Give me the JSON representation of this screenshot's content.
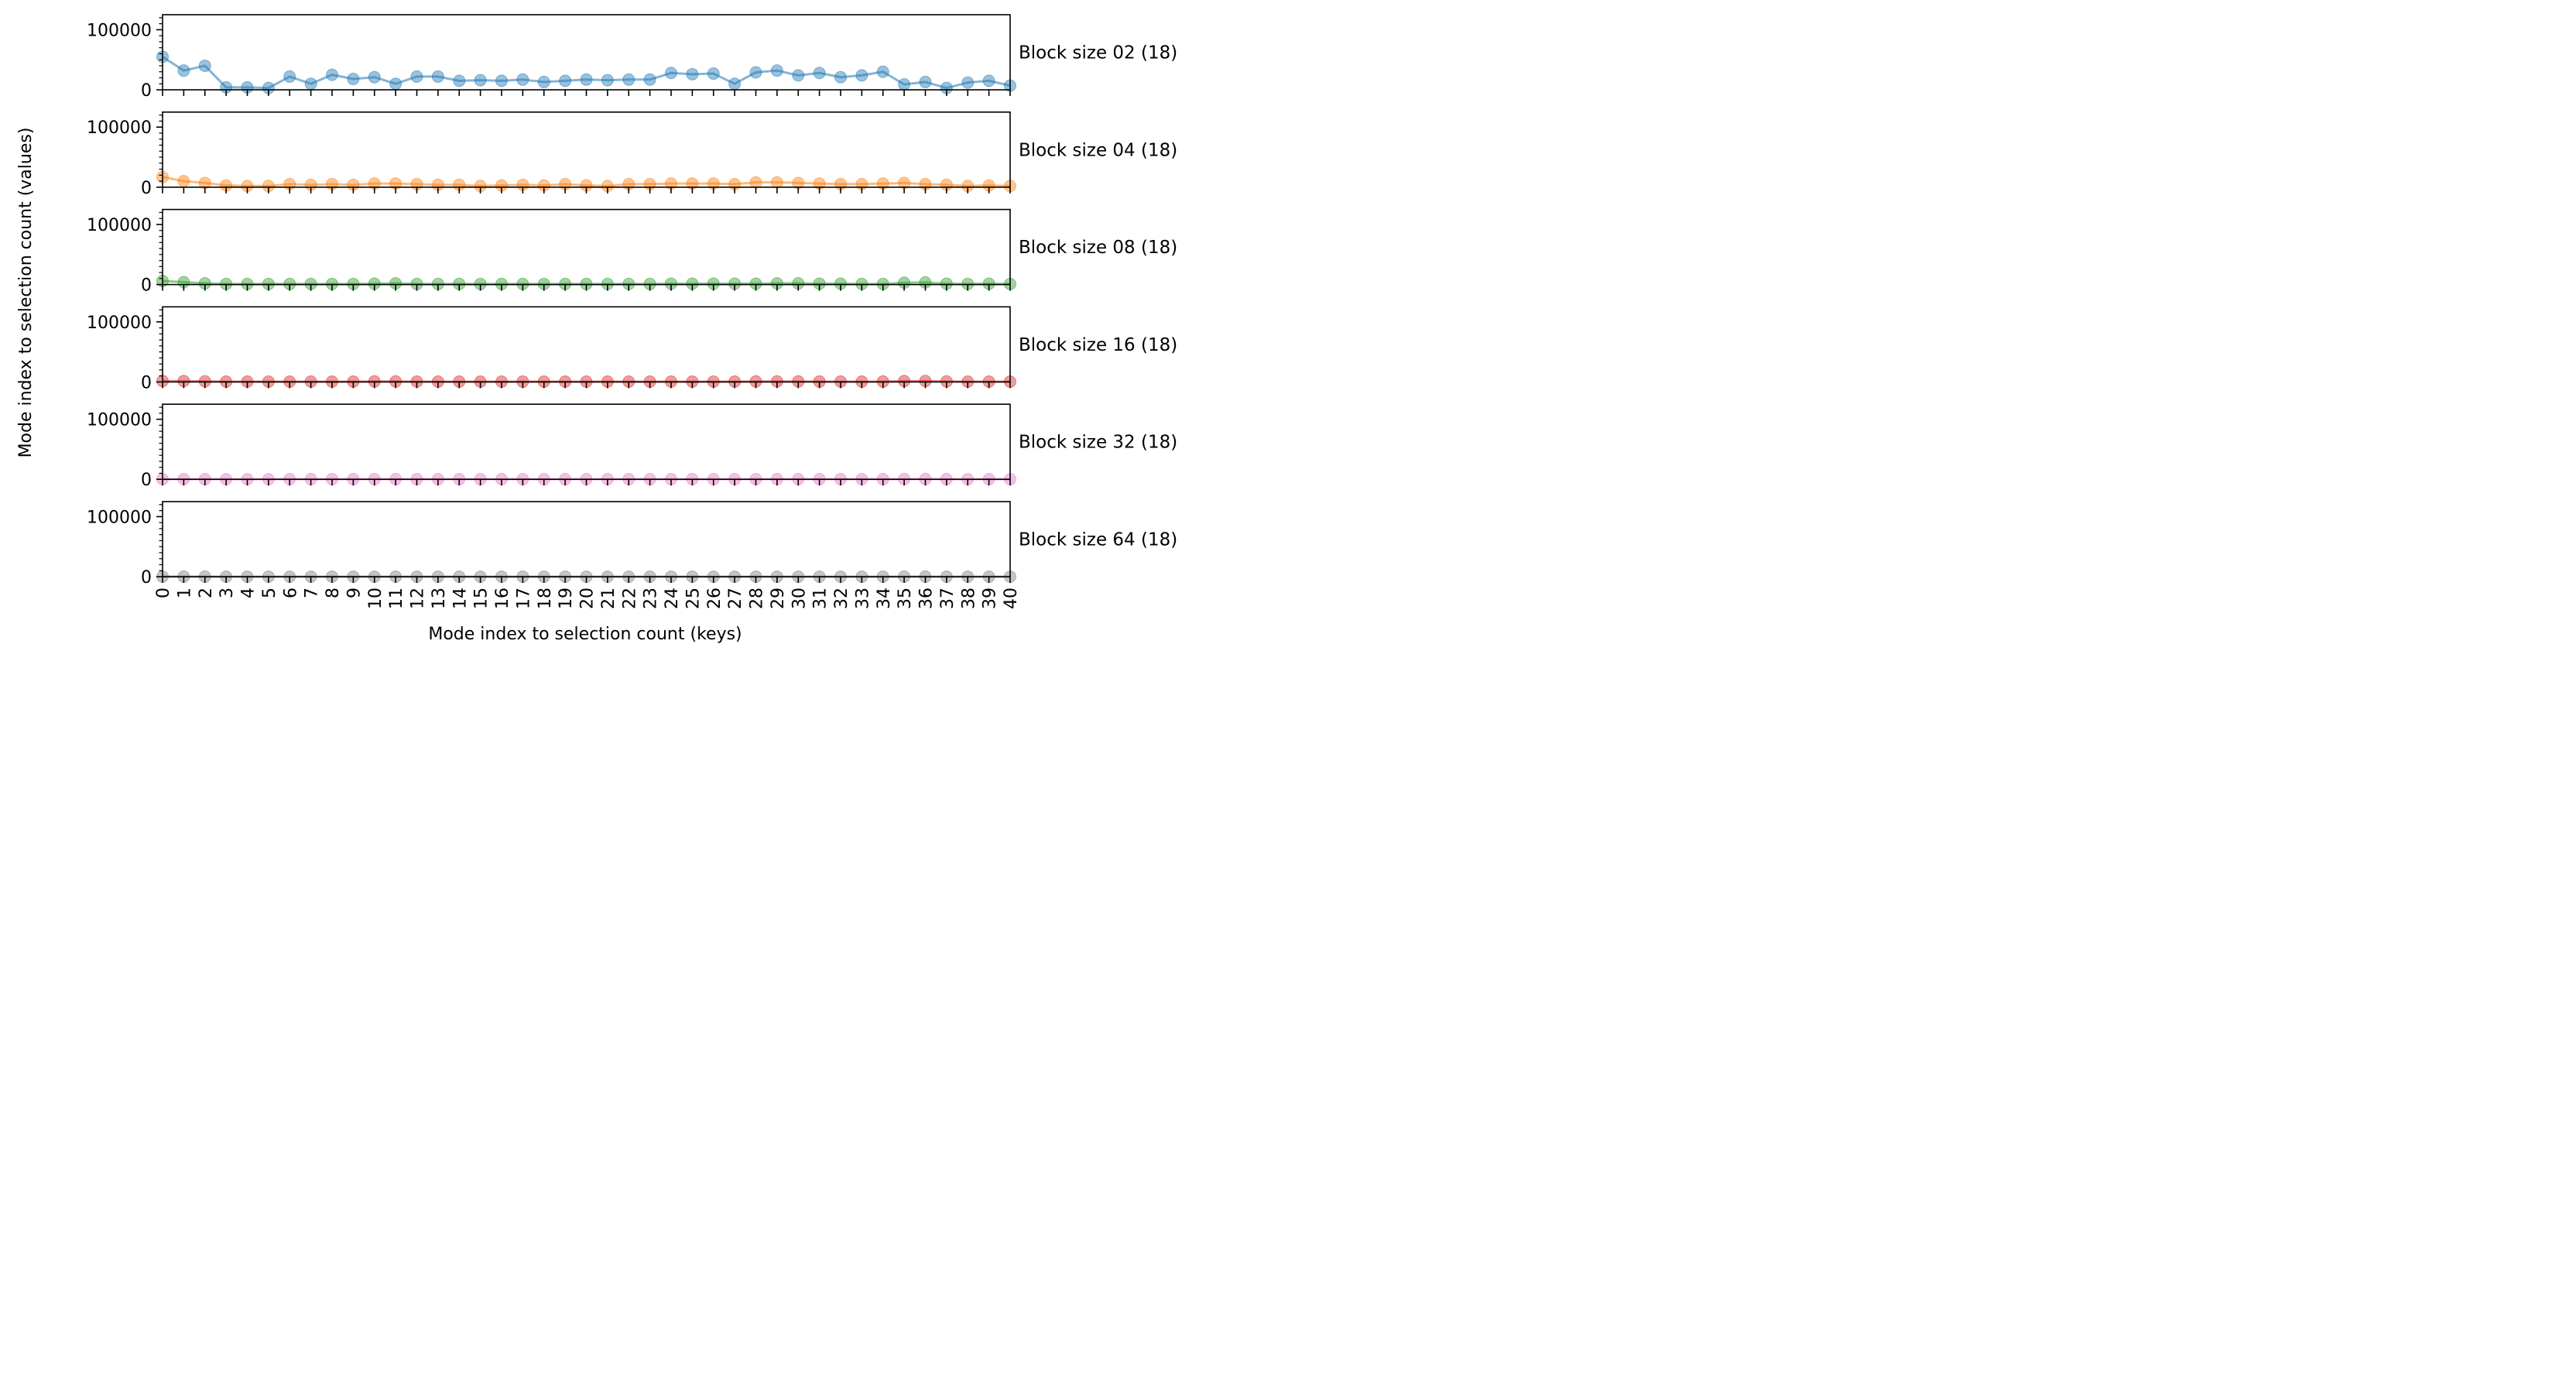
{
  "chart_data": {
    "type": "line",
    "xlabel": "Mode index to selection count (keys)",
    "ylabel": "Mode index to selection count (values)",
    "x": [
      0,
      1,
      2,
      3,
      4,
      5,
      6,
      7,
      8,
      9,
      10,
      11,
      12,
      13,
      14,
      15,
      16,
      17,
      18,
      19,
      20,
      21,
      22,
      23,
      24,
      25,
      26,
      27,
      28,
      29,
      30,
      31,
      32,
      33,
      34,
      35,
      36,
      37,
      38,
      39,
      40
    ],
    "x_tick_labels": [
      "0",
      "1",
      "2",
      "3",
      "4",
      "5",
      "6",
      "7",
      "8",
      "9",
      "10",
      "11",
      "12",
      "13",
      "14",
      "15",
      "16",
      "17",
      "18",
      "19",
      "20",
      "21",
      "22",
      "23",
      "24",
      "25",
      "26",
      "27",
      "28",
      "29",
      "30",
      "31",
      "32",
      "33",
      "34",
      "35",
      "36",
      "37",
      "38",
      "39",
      "40"
    ],
    "xlim": [
      0,
      40
    ],
    "ylim": [
      0,
      125000
    ],
    "y_ticks": [
      0,
      100000
    ],
    "y_tick_labels": [
      "0",
      "100000"
    ],
    "grid": false,
    "panels": [
      {
        "label": "Block size 02 (18)",
        "color": "#1f77b4",
        "values": [
          55000,
          32000,
          40000,
          4000,
          4000,
          3000,
          22000,
          10000,
          25000,
          18000,
          21000,
          10000,
          22000,
          22000,
          15000,
          16000,
          15000,
          17000,
          13000,
          15000,
          17000,
          16000,
          17000,
          17000,
          28000,
          26000,
          27000,
          10000,
          29000,
          32000,
          24000,
          28000,
          21000,
          24000,
          30000,
          9000,
          13000,
          3000,
          12000,
          15000,
          7000
        ]
      },
      {
        "label": "Block size 04 (18)",
        "color": "#ff7f0e",
        "values": [
          17000,
          10000,
          7000,
          3000,
          2000,
          2000,
          5000,
          4000,
          5000,
          4000,
          6000,
          6000,
          5000,
          4000,
          4000,
          2000,
          3000,
          4000,
          3000,
          5000,
          3000,
          2000,
          5000,
          5000,
          6000,
          6000,
          6000,
          5000,
          8000,
          8000,
          7000,
          6000,
          5000,
          5000,
          6000,
          7000,
          5000,
          4000,
          2000,
          3000,
          2000
        ]
      },
      {
        "label": "Block size 08 (18)",
        "color": "#2ca02c",
        "values": [
          6000,
          4000,
          2000,
          1000,
          1000,
          1000,
          1000,
          1000,
          1000,
          1000,
          1500,
          2000,
          1000,
          1000,
          1000,
          1000,
          1000,
          1000,
          1000,
          1000,
          1000,
          1000,
          1000,
          1000,
          1500,
          1500,
          1500,
          1500,
          1500,
          2000,
          2000,
          1500,
          1500,
          1000,
          1000,
          3000,
          3500,
          1500,
          1000,
          1500,
          1000
        ]
      },
      {
        "label": "Block size 16 (18)",
        "color": "#d62728",
        "values": [
          1500,
          1500,
          1000,
          500,
          500,
          500,
          500,
          500,
          500,
          500,
          800,
          800,
          500,
          500,
          500,
          500,
          500,
          500,
          500,
          500,
          500,
          500,
          500,
          500,
          500,
          500,
          500,
          500,
          800,
          800,
          800,
          600,
          500,
          500,
          600,
          1500,
          1500,
          800,
          500,
          500,
          500
        ]
      },
      {
        "label": "Block size 32 (18)",
        "color": "#e377c2",
        "values": [
          300,
          300,
          200,
          100,
          100,
          100,
          200,
          200,
          200,
          200,
          200,
          200,
          200,
          200,
          200,
          200,
          200,
          200,
          200,
          200,
          200,
          200,
          200,
          200,
          200,
          200,
          200,
          200,
          300,
          300,
          300,
          200,
          200,
          200,
          200,
          400,
          400,
          200,
          100,
          200,
          100
        ]
      },
      {
        "label": "Block size 64 (18)",
        "color": "#7f7f7f",
        "values": [
          100,
          100,
          100,
          50,
          50,
          50,
          50,
          50,
          50,
          50,
          50,
          50,
          50,
          50,
          50,
          50,
          50,
          50,
          50,
          50,
          50,
          50,
          50,
          50,
          50,
          50,
          50,
          50,
          50,
          50,
          50,
          50,
          50,
          50,
          50,
          100,
          100,
          50,
          50,
          50,
          50
        ]
      }
    ]
  }
}
